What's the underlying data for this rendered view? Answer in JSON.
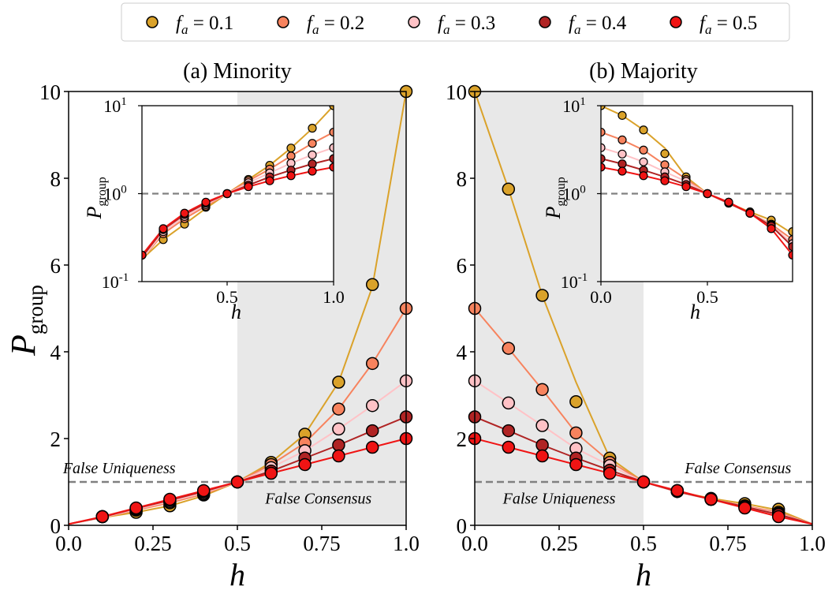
{
  "legend": {
    "placement": "top-center",
    "entries": [
      {
        "label": "f",
        "sub": "a",
        "eq": " = 0.1",
        "color": "#DAA22A"
      },
      {
        "label": "f",
        "sub": "a",
        "eq": " = 0.2",
        "color": "#F7835E"
      },
      {
        "label": "f",
        "sub": "a",
        "eq": " = 0.3",
        "color": "#FFC2C6"
      },
      {
        "label": "f",
        "sub": "a",
        "eq": " = 0.4",
        "color": "#B02424"
      },
      {
        "label": "f",
        "sub": "a",
        "eq": " = 0.5",
        "color": "#F01414"
      }
    ]
  },
  "colors": {
    "marker_edge": "#000000",
    "dashed_line": "#808080",
    "shade": "#E8E8E8"
  },
  "chart_data": [
    {
      "type": "line",
      "title": "(a) Minority",
      "xlabel": "h",
      "ylabel": "P",
      "ylabel_sub": "group",
      "xlim": [
        0,
        1
      ],
      "ylim": [
        0,
        10
      ],
      "xticks": [
        0.0,
        0.25,
        0.5,
        0.75,
        1.0
      ],
      "xtick_labels": [
        "0.0",
        "0.25",
        "0.5",
        "0.75",
        "1.0"
      ],
      "yticks": [
        0,
        2,
        4,
        6,
        8,
        10
      ],
      "ytick_labels": [
        "0",
        "2",
        "4",
        "6",
        "8",
        "10"
      ],
      "shaded_x_range": [
        0.5,
        1.0
      ],
      "reference_line": 1,
      "annotations": [
        {
          "text": "False Uniqueness",
          "x": 0.15,
          "y": 1.2
        },
        {
          "text": "False Consensus",
          "x": 0.74,
          "y": 0.5
        }
      ],
      "x": [
        0.0,
        0.1,
        0.2,
        0.3,
        0.4,
        0.5,
        0.6,
        0.7,
        0.8,
        0.9,
        1.0
      ],
      "series": [
        {
          "line": [
            0.03,
            0.18,
            0.3,
            0.45,
            0.68,
            1.0,
            1.45,
            2.1,
            3.3,
            5.5,
            10.0
          ],
          "points": [
            null,
            0.2,
            0.3,
            0.45,
            0.7,
            1.0,
            1.45,
            2.1,
            3.3,
            5.55,
            10.0
          ]
        },
        {
          "line": [
            0.03,
            0.18,
            0.35,
            0.52,
            0.72,
            1.0,
            1.4,
            1.9,
            2.68,
            3.73,
            5.0
          ],
          "points": [
            null,
            0.2,
            0.35,
            0.52,
            0.72,
            1.0,
            1.4,
            1.9,
            2.68,
            3.73,
            5.0
          ]
        },
        {
          "line": [
            0.03,
            0.18,
            0.37,
            0.55,
            0.75,
            1.0,
            1.33,
            1.72,
            2.22,
            2.76,
            3.33
          ],
          "points": [
            null,
            0.2,
            0.37,
            0.55,
            0.75,
            1.0,
            1.33,
            1.72,
            2.22,
            2.76,
            3.33
          ]
        },
        {
          "line": [
            0.03,
            0.19,
            0.39,
            0.58,
            0.78,
            1.0,
            1.25,
            1.55,
            1.85,
            2.18,
            2.5
          ],
          "points": [
            null,
            0.2,
            0.39,
            0.58,
            0.78,
            1.0,
            1.25,
            1.55,
            1.85,
            2.18,
            2.5
          ]
        },
        {
          "line": [
            0.03,
            0.2,
            0.4,
            0.6,
            0.8,
            1.0,
            1.2,
            1.4,
            1.6,
            1.8,
            2.0
          ],
          "points": [
            null,
            0.2,
            0.4,
            0.6,
            0.8,
            1.0,
            1.2,
            1.4,
            1.6,
            1.8,
            2.0
          ]
        }
      ],
      "inset": {
        "type": "line",
        "xlabel": "h",
        "ylabel": "P",
        "ylabel_sub": "group",
        "yscale": "log",
        "xlim": [
          0.1,
          1.0
        ],
        "ylim": [
          0.1,
          10
        ],
        "xticks": [
          0.5,
          1.0
        ],
        "xtick_labels": [
          "0.5",
          "1.0"
        ],
        "yticks": [
          0.1,
          1,
          10
        ],
        "ytick_labels": [
          [
            "10",
            "-1"
          ],
          [
            "10",
            "0"
          ],
          [
            "10",
            "1"
          ]
        ],
        "reference_line": 1
      }
    },
    {
      "type": "line",
      "title": "(b) Majority",
      "xlabel": "h",
      "ylabel": "",
      "xlim": [
        0,
        1
      ],
      "ylim": [
        0,
        10
      ],
      "xticks": [
        0.0,
        0.25,
        0.5,
        0.75,
        1.0
      ],
      "xtick_labels": [
        "0.0",
        "0.25",
        "0.5",
        "0.75",
        "1.0"
      ],
      "yticks": [
        0,
        2,
        4,
        6,
        8,
        10
      ],
      "ytick_labels": [
        "0",
        "2",
        "4",
        "6",
        "8",
        "10"
      ],
      "shaded_x_range": [
        0.0,
        0.5
      ],
      "reference_line": 1,
      "annotations": [
        {
          "text": "False Consensus",
          "x": 0.78,
          "y": 1.2
        },
        {
          "text": "False Uniqueness",
          "x": 0.25,
          "y": 0.5
        }
      ],
      "x": [
        0.0,
        0.1,
        0.2,
        0.3,
        0.4,
        0.5,
        0.6,
        0.7,
        0.8,
        0.9,
        1.0
      ],
      "series": [
        {
          "line": [
            10.0,
            7.75,
            5.3,
            3.3,
            1.55,
            1.0,
            0.78,
            0.62,
            0.5,
            0.35,
            0.03
          ],
          "points": [
            10.0,
            7.75,
            5.3,
            2.85,
            1.55,
            1.0,
            0.8,
            0.62,
            0.5,
            0.37,
            null
          ]
        },
        {
          "line": [
            5.0,
            4.08,
            3.13,
            2.13,
            1.47,
            1.0,
            0.77,
            0.6,
            0.45,
            0.3,
            0.03
          ],
          "points": [
            5.0,
            4.08,
            3.13,
            2.13,
            1.45,
            1.0,
            0.78,
            0.6,
            0.45,
            0.3,
            null
          ]
        },
        {
          "line": [
            3.33,
            2.82,
            2.3,
            1.77,
            1.38,
            1.0,
            0.77,
            0.6,
            0.44,
            0.27,
            0.03
          ],
          "points": [
            3.33,
            2.82,
            2.3,
            1.77,
            1.38,
            1.0,
            0.78,
            0.6,
            0.44,
            0.27,
            null
          ]
        },
        {
          "line": [
            2.5,
            2.18,
            1.85,
            1.55,
            1.27,
            1.0,
            0.78,
            0.6,
            0.43,
            0.25,
            0.03
          ],
          "points": [
            2.5,
            2.18,
            1.85,
            1.55,
            1.27,
            1.0,
            0.78,
            0.6,
            0.43,
            0.25,
            null
          ]
        },
        {
          "line": [
            2.0,
            1.8,
            1.6,
            1.4,
            1.2,
            1.0,
            0.8,
            0.6,
            0.4,
            0.2,
            0.03
          ],
          "points": [
            2.0,
            1.8,
            1.6,
            1.4,
            1.2,
            1.0,
            0.8,
            0.6,
            0.4,
            0.2,
            null
          ]
        }
      ],
      "inset": {
        "type": "line",
        "xlabel": "h",
        "ylabel": "P",
        "ylabel_sub": "group",
        "yscale": "log",
        "xlim": [
          0.0,
          0.9
        ],
        "ylim": [
          0.1,
          10
        ],
        "xticks": [
          0.0,
          0.5
        ],
        "xtick_labels": [
          "0.0",
          "0.5"
        ],
        "yticks": [
          0.1,
          1,
          10
        ],
        "ytick_labels": [
          [
            "10",
            "-1"
          ],
          [
            "10",
            "0"
          ],
          [
            "10",
            "1"
          ]
        ],
        "reference_line": 1
      }
    }
  ]
}
